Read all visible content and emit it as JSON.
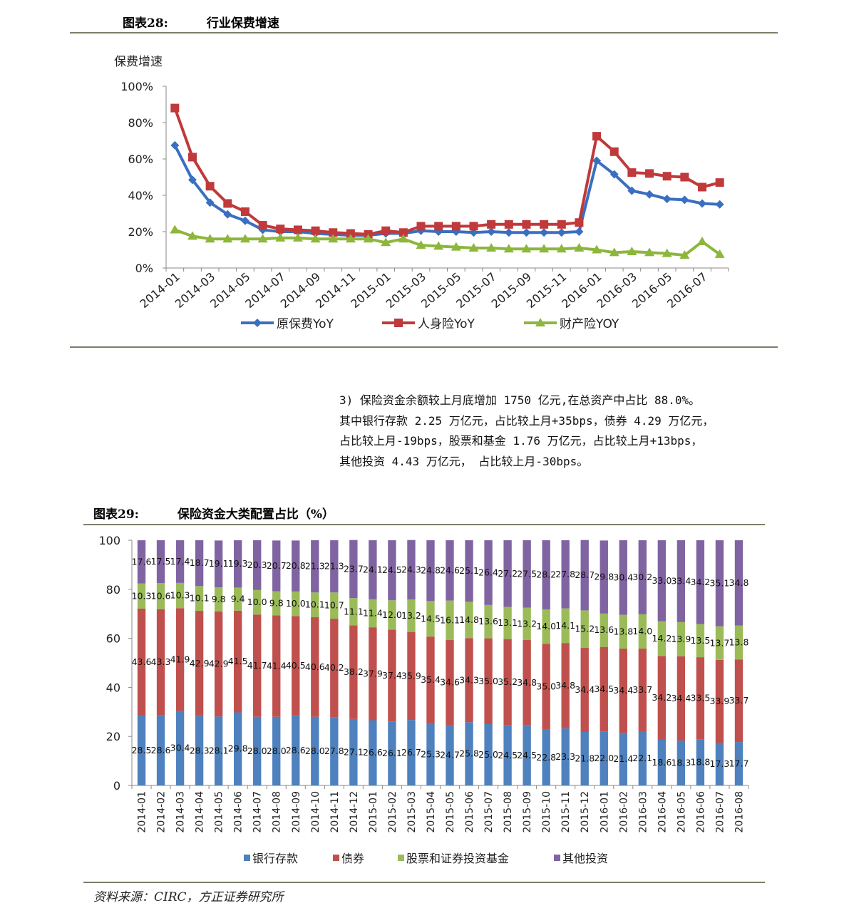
{
  "figure28": {
    "label": "图表28:",
    "title": "行业保费增速"
  },
  "figure29": {
    "label": "图表29:",
    "title": "保险资金大类配置占比（%）"
  },
  "paragraph": [
    "3) 保险资金余额较上月底增加 1750 亿元,在总资产中占比 88.0%。",
    "其中银行存款 2.25 万亿元，占比较上月+35bps，债券 4.29 万亿元，",
    "占比较上月-19bps，股票和基金 1.76 万亿元，占比较上月+13bps，",
    "其他投资 4.43 万亿元， 占比较上月-30bps。"
  ],
  "source": "资料来源：CIRC，方正证券研究所",
  "chart_data": [
    {
      "type": "line",
      "ylabel": "保费增速",
      "ylim": [
        0,
        100
      ],
      "yticks": [
        "0%",
        "20%",
        "40%",
        "60%",
        "80%",
        "100%"
      ],
      "x": [
        "2014-01",
        "2014-02",
        "2014-03",
        "2014-04",
        "2014-05",
        "2014-06",
        "2014-07",
        "2014-08",
        "2014-09",
        "2014-10",
        "2014-11",
        "2014-12",
        "2015-01",
        "2015-02",
        "2015-03",
        "2015-04",
        "2015-05",
        "2015-06",
        "2015-07",
        "2015-08",
        "2015-09",
        "2015-10",
        "2015-11",
        "2015-12",
        "2016-01",
        "2016-02",
        "2016-03",
        "2016-04",
        "2016-05",
        "2016-06",
        "2016-07",
        "2016-08"
      ],
      "xtick_labels": [
        "2014-01",
        "2014-03",
        "2014-05",
        "2014-07",
        "2014-09",
        "2014-11",
        "2015-01",
        "2015-03",
        "2015-05",
        "2015-07",
        "2015-09",
        "2015-11",
        "2016-01",
        "2016-03",
        "2016-05",
        "2016-07"
      ],
      "legend_position": "bottom",
      "series": [
        {
          "name": "原保费YoY",
          "color": "#3a6fc0",
          "marker": "diamond",
          "values": [
            67.5,
            48.5,
            36,
            29.5,
            26,
            21,
            20,
            20,
            19,
            18.5,
            18,
            18,
            19,
            19,
            20.5,
            20,
            20,
            19.5,
            20,
            19.5,
            19.5,
            19.5,
            19.5,
            20,
            59,
            51.5,
            42.5,
            40.5,
            38,
            37.5,
            35.5,
            35
          ]
        },
        {
          "name": "人身险YoY",
          "color": "#c0393b",
          "marker": "square",
          "values": [
            88,
            61,
            45,
            35.5,
            31,
            23.5,
            21.5,
            21,
            20.5,
            19.5,
            19,
            18.5,
            20.5,
            19.5,
            23,
            23,
            23,
            23,
            24,
            24,
            24,
            24,
            24,
            25,
            72.5,
            64,
            52.5,
            52,
            50.5,
            50,
            44.5,
            47
          ]
        },
        {
          "name": "财产险YOY",
          "color": "#8db63c",
          "marker": "triangle",
          "values": [
            21,
            17.5,
            16,
            16,
            16,
            16,
            16.5,
            16.5,
            16,
            16,
            16,
            16,
            14,
            16,
            12.5,
            12,
            11.5,
            11,
            11,
            10.5,
            10.5,
            10.5,
            10.5,
            11,
            10,
            8.5,
            9,
            8.5,
            8,
            7,
            14.5,
            7.5
          ]
        }
      ]
    },
    {
      "type": "bar",
      "stacked": true,
      "ylim": [
        0,
        100
      ],
      "yticks": [
        "0",
        "20",
        "40",
        "60",
        "80",
        "100"
      ],
      "legend_position": "bottom",
      "categories": [
        "2014-01",
        "2014-02",
        "2014-03",
        "2014-04",
        "2014-05",
        "2014-06",
        "2014-07",
        "2014-08",
        "2014-09",
        "2014-10",
        "2014-11",
        "2014-12",
        "2015-01",
        "2015-02",
        "2015-03",
        "2015-04",
        "2015-05",
        "2015-06",
        "2015-07",
        "2015-08",
        "2015-09",
        "2015-10",
        "2015-11",
        "2015-12",
        "2016-01",
        "2016-02",
        "2016-03",
        "2016-04",
        "2016-05",
        "2016-06",
        "2016-07",
        "2016-08"
      ],
      "series": [
        {
          "name": "银行存款",
          "color": "#4e81bd",
          "values": [
            28.5,
            28.6,
            30.4,
            28.3,
            28.1,
            29.8,
            28.0,
            28.0,
            28.6,
            28.0,
            27.8,
            27.1,
            26.6,
            26.1,
            26.7,
            25.3,
            24.7,
            25.8,
            25.0,
            24.5,
            24.5,
            22.8,
            23.3,
            21.8,
            22.0,
            21.4,
            22.1,
            18.6,
            18.3,
            18.8,
            17.3,
            17.7
          ],
          "labels": [
            "28.5",
            "28.6",
            "30.4",
            "28.3",
            "28.1",
            "29.8",
            "28.0",
            "28.0",
            "28.6",
            "28.0",
            "27.8",
            "27.1",
            "26.6",
            "26.1",
            "26.7",
            "25.3",
            "24.7",
            "25.8",
            "25.0",
            "24.5",
            "24.5",
            "22.8",
            "23.3",
            "21.8",
            "22.0",
            "21.4",
            "22.1",
            "18.6",
            "18.3",
            "18.8",
            "17.3",
            "17.7"
          ]
        },
        {
          "name": "债券",
          "color": "#c0504d",
          "values": [
            43.6,
            43.3,
            41.9,
            42.9,
            42.9,
            41.5,
            41.7,
            41.4,
            40.5,
            40.6,
            40.2,
            38.2,
            37.9,
            37.4,
            35.9,
            35.4,
            34.6,
            34.3,
            35.0,
            35.2,
            34.8,
            35.0,
            34.8,
            34.4,
            34.5,
            34.4,
            33.7,
            34.2,
            34.4,
            33.5,
            33.9,
            33.7
          ],
          "labels": [
            "43.6",
            "43.3",
            "41.9",
            "42.9",
            "42.9",
            "41.5",
            "41.7",
            "41.4",
            "40.5",
            "40.6",
            "40.2",
            "38.2",
            "37.9",
            "37.4",
            "35.9",
            "35.4",
            "34.6",
            "34.3",
            "35.0",
            "35.2",
            "34.8",
            "35.0",
            "34.8",
            "34.4",
            "34.5",
            "34.4",
            "33.7",
            "34.2",
            "34.4",
            "33.5",
            "33.9",
            "33.7"
          ]
        },
        {
          "name": "股票和证券投资基金",
          "color": "#9bbb59",
          "values": [
            10.3,
            10.6,
            10.3,
            10.1,
            9.8,
            9.4,
            10.0,
            9.8,
            10.0,
            10.1,
            10.7,
            11.1,
            11.4,
            12.0,
            13.2,
            14.5,
            16.1,
            14.8,
            13.6,
            13.1,
            13.2,
            14.0,
            14.1,
            15.2,
            13.6,
            13.8,
            14.0,
            14.2,
            13.9,
            13.5,
            13.7,
            13.8
          ],
          "labels": [
            "10.3",
            "10.6",
            "10.3",
            "10.1",
            "9.8",
            "9.4",
            "10.0",
            "9.8",
            "10.0",
            "10.1",
            "10.7",
            "11.1",
            "11.4",
            "12.0",
            "13.2",
            "14.5",
            "16.1",
            "14.8",
            "13.6",
            "13.1",
            "13.2",
            "14.0",
            "14.1",
            "15.2",
            "13.6",
            "13.8",
            "14.0",
            "14.2",
            "13.9",
            "13.5",
            "13.7",
            "13.8"
          ]
        },
        {
          "name": "其他投资",
          "color": "#8064a2",
          "values": [
            17.6,
            17.5,
            17.4,
            18.7,
            19.1,
            19.3,
            20.3,
            20.7,
            20.8,
            21.3,
            21.3,
            23.7,
            24.1,
            24.5,
            24.3,
            24.8,
            24.6,
            25.1,
            26.4,
            27.2,
            27.5,
            28.2,
            27.8,
            28.7,
            29.8,
            30.4,
            30.2,
            33.0,
            33.4,
            34.2,
            35.1,
            34.8
          ],
          "labels": [
            "17.6",
            "17.5",
            "17.4",
            "18.7",
            "19.1",
            "19.3",
            "20.3",
            "20.7",
            "20.8",
            "21.3",
            "21.3",
            "23.7",
            "24.1",
            "24.5",
            "24.3",
            "24.8",
            "24.6",
            "25.1",
            "26.4",
            "27.2",
            "27.5",
            "28.2",
            "27.8",
            "28.7",
            "29.8",
            "30.4",
            "30.2",
            "33.0",
            "33.4",
            "34.2",
            "35.1",
            "34.8"
          ]
        }
      ]
    }
  ]
}
